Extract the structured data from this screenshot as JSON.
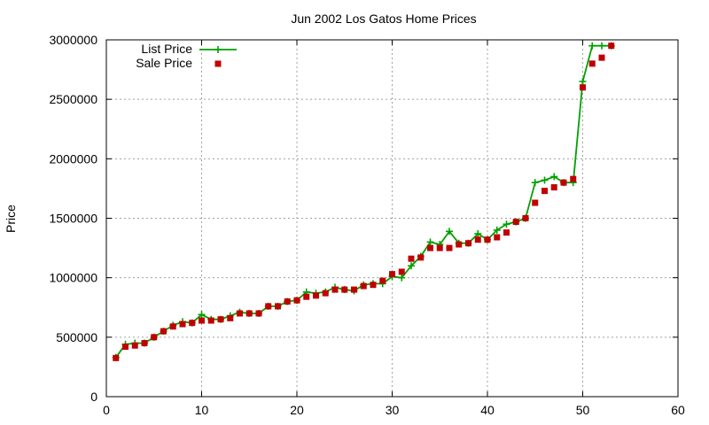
{
  "chart_data": {
    "type": "line",
    "title": "Jun 2002 Los Gatos Home Prices",
    "xlabel": "",
    "ylabel": "Price",
    "xlim": [
      0,
      60
    ],
    "ylim": [
      0,
      3000000
    ],
    "xticks": [
      "0",
      "10",
      "20",
      "30",
      "40",
      "50",
      "60"
    ],
    "yticks": [
      "0",
      "500000",
      "1000000",
      "1500000",
      "2000000",
      "2500000",
      "3000000"
    ],
    "grid": true,
    "legend_position": "top-left",
    "colors": {
      "list": "#00a000",
      "sale": "#c00000"
    },
    "series": [
      {
        "name": "List Price",
        "style": "line-with-plus-markers",
        "x": [
          1,
          2,
          3,
          4,
          5,
          6,
          7,
          8,
          9,
          10,
          11,
          12,
          13,
          14,
          15,
          16,
          17,
          18,
          19,
          20,
          21,
          22,
          23,
          24,
          25,
          26,
          27,
          28,
          29,
          30,
          31,
          32,
          33,
          34,
          35,
          36,
          37,
          38,
          39,
          40,
          41,
          42,
          43,
          44,
          45,
          46,
          47,
          48,
          49,
          50,
          51,
          52,
          53
        ],
        "y": [
          330000,
          440000,
          450000,
          450000,
          500000,
          550000,
          600000,
          630000,
          620000,
          690000,
          650000,
          650000,
          680000,
          710000,
          700000,
          700000,
          760000,
          760000,
          800000,
          810000,
          880000,
          870000,
          880000,
          920000,
          900000,
          890000,
          940000,
          950000,
          950000,
          1010000,
          1000000,
          1100000,
          1180000,
          1300000,
          1280000,
          1390000,
          1290000,
          1290000,
          1370000,
          1320000,
          1400000,
          1450000,
          1470000,
          1500000,
          1800000,
          1820000,
          1850000,
          1800000,
          1800000,
          2650000,
          2950000,
          2950000,
          2950000
        ]
      },
      {
        "name": "Sale Price",
        "style": "square-markers",
        "x": [
          1,
          2,
          3,
          4,
          5,
          6,
          7,
          8,
          9,
          10,
          11,
          12,
          13,
          14,
          15,
          16,
          17,
          18,
          19,
          20,
          21,
          22,
          23,
          24,
          25,
          26,
          27,
          28,
          29,
          30,
          31,
          32,
          33,
          34,
          35,
          36,
          37,
          38,
          39,
          40,
          41,
          42,
          43,
          44,
          45,
          46,
          47,
          48,
          49,
          50,
          51,
          52,
          53
        ],
        "y": [
          325000,
          420000,
          430000,
          450000,
          500000,
          550000,
          590000,
          610000,
          620000,
          640000,
          640000,
          650000,
          660000,
          700000,
          700000,
          700000,
          760000,
          760000,
          800000,
          810000,
          840000,
          850000,
          870000,
          900000,
          900000,
          900000,
          930000,
          940000,
          975000,
          1030000,
          1050000,
          1160000,
          1170000,
          1250000,
          1250000,
          1250000,
          1280000,
          1290000,
          1320000,
          1320000,
          1340000,
          1380000,
          1470000,
          1500000,
          1630000,
          1730000,
          1760000,
          1800000,
          1830000,
          2600000,
          2800000,
          2850000,
          2950000
        ]
      }
    ]
  }
}
